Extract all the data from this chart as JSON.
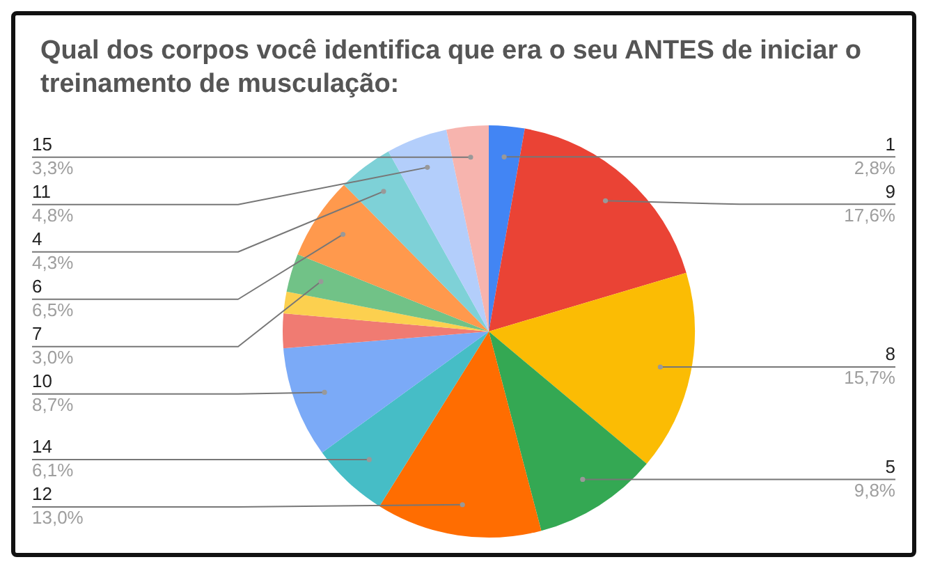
{
  "chart_data": {
    "type": "pie",
    "title": "Qual dos corpos você identifica que era o seu ANTES de iniciar o treinamento de musculação:",
    "categories": [
      "1",
      "9",
      "8",
      "5",
      "12",
      "14",
      "10",
      null,
      null,
      "7",
      "6",
      "4",
      "11",
      "15"
    ],
    "values": [
      2.8,
      17.6,
      15.7,
      9.8,
      13.0,
      6.1,
      8.7,
      2.7,
      1.7,
      3.0,
      6.5,
      4.3,
      4.8,
      3.3
    ],
    "value_labels": [
      "2,8%",
      "17,6%",
      "15,7%",
      "9,8%",
      "13,0%",
      "6,1%",
      "8,7%",
      null,
      null,
      "3,0%",
      "6,5%",
      "4,3%",
      "4,8%",
      "3,3%"
    ],
    "colors": [
      "#4285f4",
      "#ea4335",
      "#fbbc04",
      "#34a853",
      "#ff6d01",
      "#46bdc6",
      "#7baaf7",
      "#f07b72",
      "#fcd04f",
      "#71c287",
      "#ff994d",
      "#7ed1d7",
      "#b3cefb",
      "#f7b4ae"
    ]
  }
}
